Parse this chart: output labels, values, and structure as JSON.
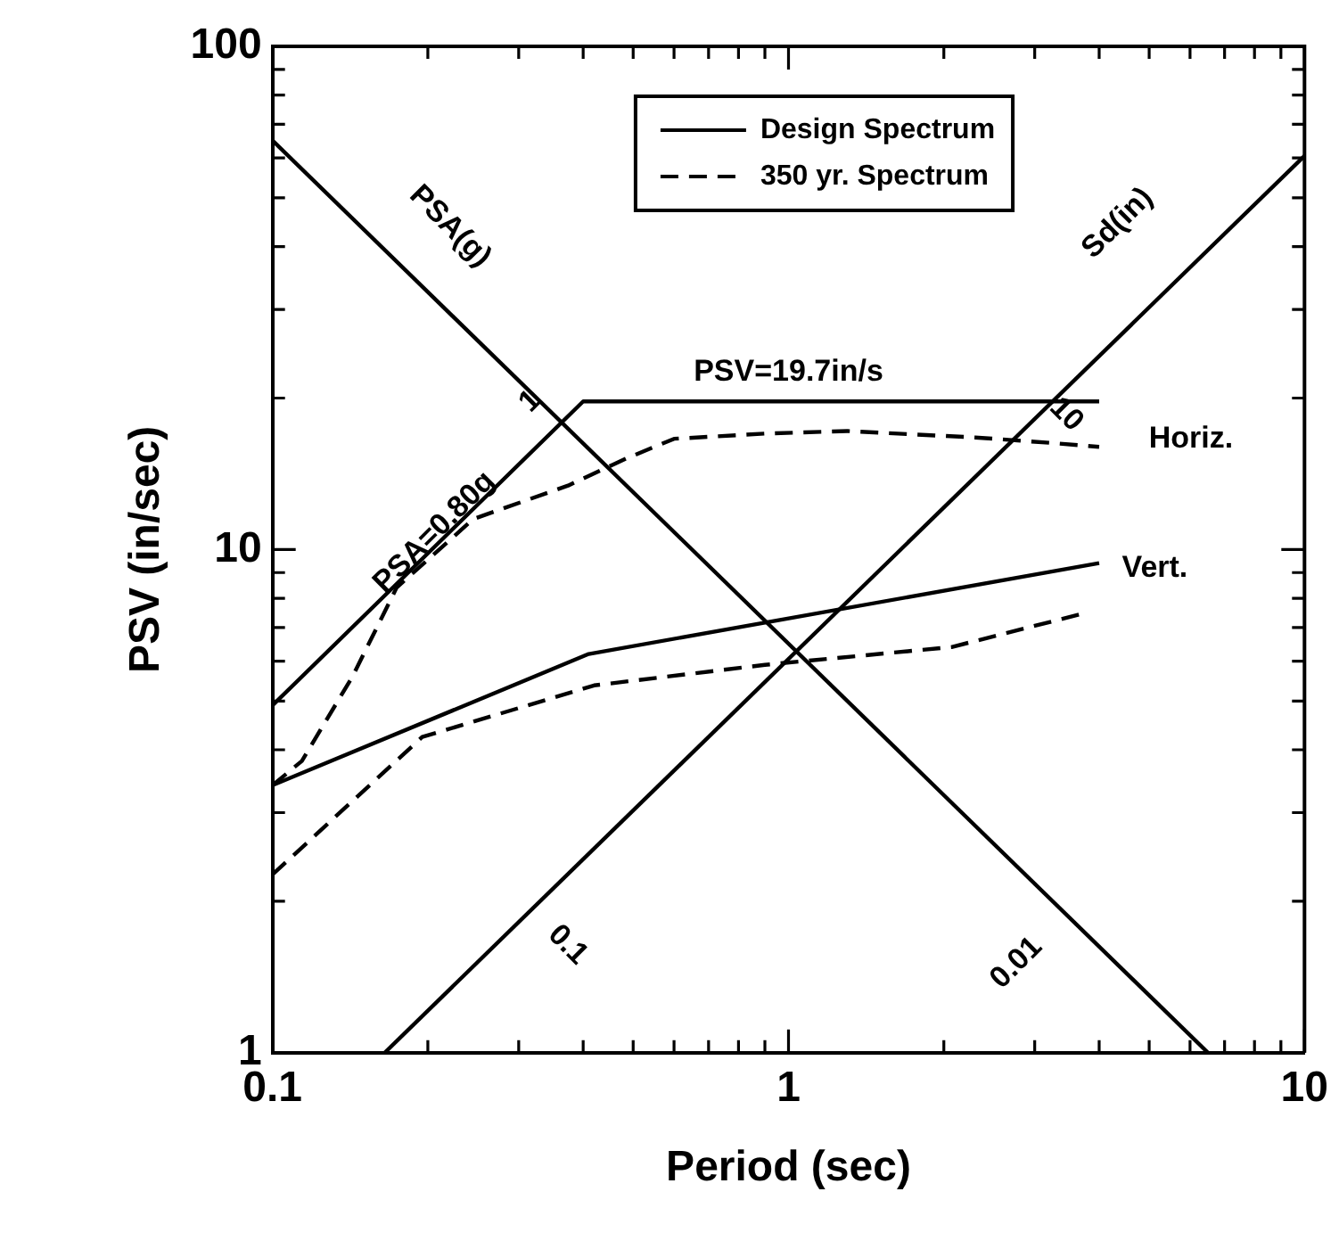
{
  "chart_data": {
    "type": "line",
    "xlabel": "Period (sec)",
    "ylabel": "PSV (in/sec)",
    "log": "xy",
    "grid": false,
    "legend": "top",
    "marker": "none",
    "xlim": [
      0.1,
      10
    ],
    "ylim": [
      1,
      100
    ],
    "xticks": [
      0.1,
      {
        "value": 0.2,
        "label": null
      },
      {
        "value": 0.3,
        "label": null
      },
      {
        "value": 0.4,
        "label": null
      },
      {
        "value": 0.5,
        "label": null
      },
      {
        "value": 0.6,
        "label": null
      },
      {
        "value": 0.7,
        "label": null
      },
      {
        "value": 0.8,
        "label": null
      },
      {
        "value": 0.9,
        "label": null
      },
      1,
      {
        "value": 2,
        "label": null
      },
      {
        "value": 3,
        "label": null
      },
      {
        "value": 4,
        "label": null
      },
      {
        "value": 5,
        "label": null
      },
      {
        "value": 6,
        "label": null
      },
      {
        "value": 7,
        "label": null
      },
      {
        "value": 8,
        "label": null
      },
      {
        "value": 9,
        "label": null
      },
      10
    ],
    "yticks": [
      1,
      {
        "value": 2,
        "label": null
      },
      {
        "value": 3,
        "label": null
      },
      {
        "value": 4,
        "label": null
      },
      {
        "value": 5,
        "label": null
      },
      {
        "value": 6,
        "label": null
      },
      {
        "value": 7,
        "label": null
      },
      {
        "value": 8,
        "label": null
      },
      {
        "value": 9,
        "label": null
      },
      10,
      {
        "value": 20,
        "label": null
      },
      {
        "value": 30,
        "label": null
      },
      {
        "value": 40,
        "label": null
      },
      {
        "value": 50,
        "label": null
      },
      {
        "value": 60,
        "label": null
      },
      {
        "value": 70,
        "label": null
      },
      {
        "value": 80,
        "label": null
      },
      {
        "value": 90,
        "label": null
      },
      100
    ],
    "series": [
      {
        "name": "Design Spectrum",
        "color": "#000000",
        "line_style": "solid",
        "x": [
          0.1,
          0.4,
          4
        ],
        "values": [
          4.9,
          19.7,
          19.7
        ]
      },
      {
        "name": "350 yr. Spectrum",
        "color": "#000000",
        "line_style": "dashed",
        "x": [
          0.1,
          0.114,
          0.143,
          0.174,
          0.245,
          0.374,
          0.487,
          0.6,
          0.9,
          1.3,
          2.3,
          3.2,
          4
        ],
        "values": [
          3.4,
          3.8,
          5.6,
          8.4,
          11.5,
          13.4,
          15.2,
          16.6,
          17,
          17.2,
          16.7,
          16.3,
          16
        ]
      },
      {
        "color": "#000000",
        "line_style": "solid",
        "x": [
          0.1,
          0.41,
          4
        ],
        "values": [
          3.4,
          6.2,
          9.4
        ]
      },
      {
        "color": "#000000",
        "line_style": "dashed",
        "x": [
          0.1,
          0.195,
          0.42,
          0.9,
          2.07,
          3.7
        ],
        "values": [
          2.26,
          4.24,
          5.37,
          5.9,
          6.4,
          7.45
        ]
      },
      {
        "color": "#000000",
        "line_style": "solid",
        "x": [
          0.1,
          6.5
        ],
        "values": [
          65,
          1
        ]
      },
      {
        "color": "#000000",
        "line_style": "solid",
        "x": [
          0.165,
          10
        ],
        "values": [
          1,
          60.6
        ]
      }
    ],
    "annotations": [
      "PSV=19.7in/s",
      "PSA=0.80g",
      "Horiz.",
      "Vert.",
      "PSA(g)",
      "Sd(in)",
      "1",
      "10",
      "0.1",
      "0.01"
    ]
  }
}
